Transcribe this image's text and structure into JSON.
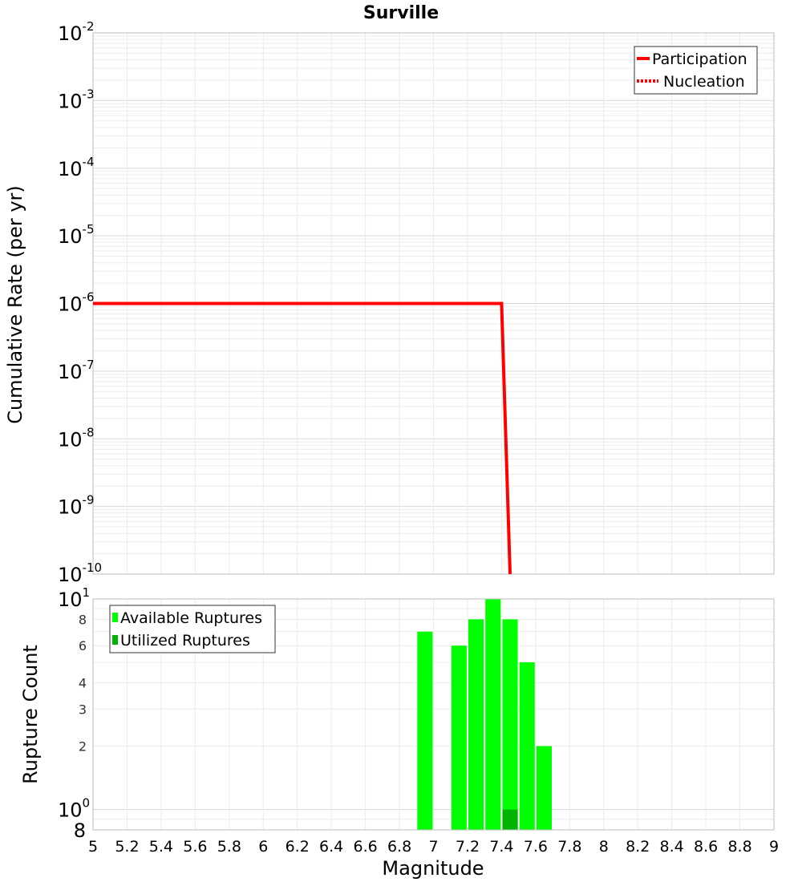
{
  "chart_data": [
    {
      "type": "line",
      "title": "Surville",
      "xlabel": "",
      "ylabel": "Cumulative Rate (per yr)",
      "xlim": [
        5,
        9
      ],
      "ylim": [
        1e-10,
        0.01
      ],
      "y_scale": "log",
      "y_tick_exponents": [
        "-2",
        "-3",
        "-4",
        "-5",
        "-6",
        "-7",
        "-8",
        "-9",
        "-10"
      ],
      "y_tick_base": "10",
      "grid": true,
      "legend_position": "top-right",
      "series": [
        {
          "name": "Participation",
          "style": "solid",
          "color": "#ff0000",
          "x": [
            5.0,
            7.4,
            7.45
          ],
          "y": [
            1e-06,
            1e-06,
            1e-10
          ]
        },
        {
          "name": "Nucleation",
          "style": "dotted",
          "color": "#ff0000",
          "x": [
            5.0,
            7.4,
            7.45
          ],
          "y": [
            1e-06,
            1e-06,
            1e-10
          ]
        }
      ]
    },
    {
      "type": "bar",
      "xlabel": "Magnitude",
      "ylabel": "Rupture Count",
      "xlim": [
        5,
        9
      ],
      "ylim": [
        0.8,
        10
      ],
      "y_scale": "log",
      "grid": true,
      "legend_position": "top-left",
      "x_ticks": [
        "5",
        "5.2",
        "5.4",
        "5.6",
        "5.8",
        "6",
        "6.2",
        "6.4",
        "6.6",
        "6.8",
        "7",
        "7.2",
        "7.4",
        "7.6",
        "7.8",
        "8",
        "8.2",
        "8.4",
        "8.6",
        "8.8",
        "9"
      ],
      "y_tick_labels": [
        {
          "value": 10,
          "main": "10",
          "exp": "1"
        },
        {
          "value": 8,
          "main": "8"
        },
        {
          "value": 6,
          "main": "6"
        },
        {
          "value": 4,
          "main": "4"
        },
        {
          "value": 3,
          "main": "3"
        },
        {
          "value": 2,
          "main": "2"
        },
        {
          "value": 1,
          "main": "10",
          "exp": "0"
        },
        {
          "value": 0.8,
          "main": "8"
        }
      ],
      "bar_width": 0.09,
      "series": [
        {
          "name": "Available Ruptures",
          "color": "#00ff00",
          "x": [
            6.95,
            7.15,
            7.25,
            7.35,
            7.45,
            7.55,
            7.65
          ],
          "values": [
            7,
            6,
            8,
            10,
            8,
            5,
            2
          ]
        },
        {
          "name": "Utilized Ruptures",
          "color": "#00b300",
          "x": [
            7.45
          ],
          "values": [
            1
          ]
        }
      ]
    }
  ]
}
